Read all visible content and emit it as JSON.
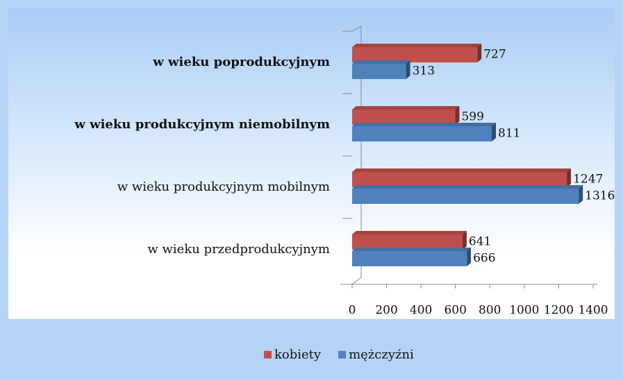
{
  "chart_data": {
    "type": "bar",
    "orientation": "horizontal",
    "categories": [
      "w wieku poprodukcyjnym",
      "w wieku produkcyjnym niemobilnym",
      "w wieku produkcyjnym mobilnym",
      "w wieku przedprodukcyjnym"
    ],
    "series": [
      {
        "name": "kobiety",
        "color": "#c0504d",
        "values": [
          727,
          599,
          1247,
          641
        ]
      },
      {
        "name": "mężczyźni",
        "color": "#4f81bd",
        "values": [
          313,
          811,
          1316,
          666
        ]
      }
    ],
    "xlim": [
      0,
      1400
    ],
    "xticks": [
      0,
      200,
      400,
      600,
      800,
      1000,
      1200,
      1400
    ],
    "legend": "bottom"
  }
}
